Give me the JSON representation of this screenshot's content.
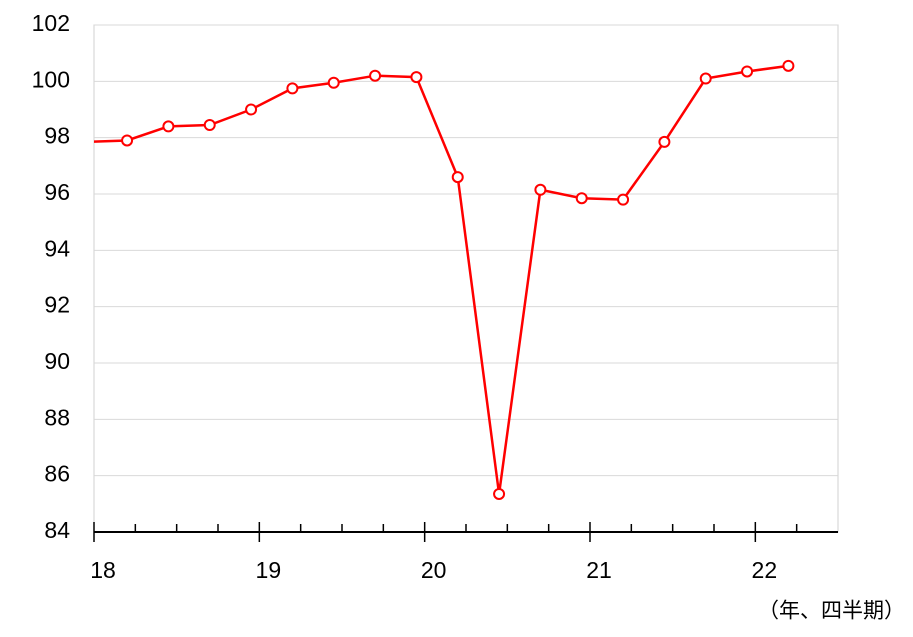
{
  "chart_data": {
    "type": "line",
    "x": [
      17.95,
      18.2,
      18.45,
      18.7,
      18.95,
      19.2,
      19.45,
      19.7,
      19.95,
      20.2,
      20.45,
      20.7,
      20.95,
      21.2,
      21.45,
      21.7,
      21.95,
      22.2
    ],
    "series": [
      {
        "color": "#ff0000",
        "values": [
          97.85,
          97.9,
          98.4,
          98.45,
          99.0,
          99.75,
          99.95,
          100.2,
          100.15,
          96.6,
          85.35,
          96.15,
          95.85,
          95.8,
          97.85,
          100.1,
          100.35,
          100.55
        ]
      }
    ],
    "xlim": [
      18,
      22.5
    ],
    "xticks": [
      18,
      19,
      20,
      21,
      22
    ],
    "xminorticks": [
      18.25,
      18.5,
      18.75,
      19.25,
      19.5,
      19.75,
      20.25,
      20.5,
      20.75,
      21.25,
      21.5,
      21.75,
      22.25
    ],
    "ylim": [
      84,
      102
    ],
    "yticks": [
      84,
      86,
      88,
      90,
      92,
      94,
      96,
      98,
      100,
      102
    ],
    "grid": true,
    "x_label": "（年、四半期）"
  }
}
